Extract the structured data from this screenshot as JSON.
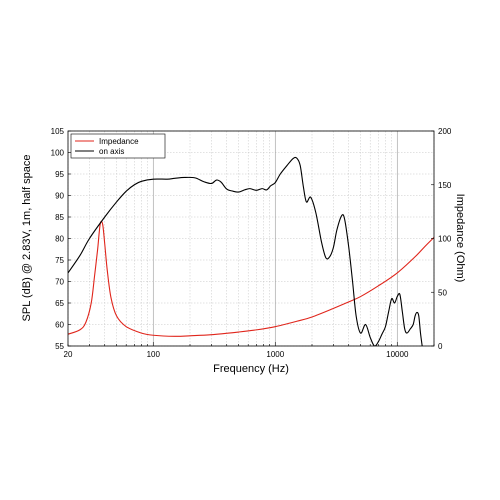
{
  "chart_data": {
    "type": "line",
    "xlabel": "Frequency (Hz)",
    "ylabel_left": "SPL (dB) @ 2.83V, 1m, half space",
    "ylabel_right": "Impedance (Ohm)",
    "x_scale": "log",
    "xlim": [
      20,
      20000
    ],
    "ylim_left": [
      55,
      105
    ],
    "ylim_right": [
      0,
      200
    ],
    "x_tick_labels": [
      "20",
      "100",
      "1000",
      "10000"
    ],
    "x_ticks": [
      20,
      100,
      1000,
      10000
    ],
    "y_left_ticks": [
      55,
      60,
      65,
      70,
      75,
      80,
      85,
      90,
      95,
      100,
      105
    ],
    "y_left_tick_labels": [
      "55",
      "60",
      "65",
      "70",
      "75",
      "80",
      "85",
      "90",
      "95",
      "100",
      "105"
    ],
    "y_right_ticks": [
      0,
      50,
      100,
      150,
      200
    ],
    "y_right_tick_labels": [
      "0",
      "50",
      "100",
      "150",
      "200"
    ],
    "grid": true,
    "legend_position": "top-left",
    "series": [
      {
        "name": "Impedance",
        "color": "#e0251b",
        "axis": "right",
        "points": [
          [
            20,
            11
          ],
          [
            25,
            15
          ],
          [
            28,
            22
          ],
          [
            31,
            40
          ],
          [
            33,
            65
          ],
          [
            35,
            90
          ],
          [
            36,
            105
          ],
          [
            37,
            115
          ],
          [
            38.5,
            113
          ],
          [
            40,
            95
          ],
          [
            42,
            70
          ],
          [
            45,
            45
          ],
          [
            50,
            28
          ],
          [
            60,
            18
          ],
          [
            80,
            12
          ],
          [
            100,
            10
          ],
          [
            150,
            9
          ],
          [
            200,
            9.5
          ],
          [
            300,
            10.5
          ],
          [
            500,
            13
          ],
          [
            700,
            15
          ],
          [
            1000,
            18
          ],
          [
            1500,
            23
          ],
          [
            2000,
            27
          ],
          [
            3000,
            35
          ],
          [
            4000,
            41
          ],
          [
            5000,
            46
          ],
          [
            7000,
            56
          ],
          [
            10000,
            68
          ],
          [
            14000,
            83
          ],
          [
            17000,
            93
          ],
          [
            20000,
            101
          ]
        ]
      },
      {
        "name": "on axis",
        "color": "#000000",
        "axis": "left",
        "points": [
          [
            20,
            72
          ],
          [
            25,
            76
          ],
          [
            30,
            80
          ],
          [
            40,
            85
          ],
          [
            50,
            88.5
          ],
          [
            60,
            91
          ],
          [
            70,
            92.5
          ],
          [
            80,
            93.3
          ],
          [
            100,
            93.8
          ],
          [
            130,
            93.8
          ],
          [
            150,
            94
          ],
          [
            180,
            94.2
          ],
          [
            220,
            94.1
          ],
          [
            260,
            93.2
          ],
          [
            300,
            92.8
          ],
          [
            330,
            93.6
          ],
          [
            360,
            93.1
          ],
          [
            400,
            91.5
          ],
          [
            450,
            91
          ],
          [
            500,
            90.8
          ],
          [
            560,
            91.3
          ],
          [
            620,
            91.6
          ],
          [
            700,
            91.2
          ],
          [
            780,
            91.6
          ],
          [
            850,
            91.3
          ],
          [
            920,
            92.3
          ],
          [
            1000,
            93
          ],
          [
            1100,
            95
          ],
          [
            1250,
            97
          ],
          [
            1400,
            98.6
          ],
          [
            1500,
            98.7
          ],
          [
            1600,
            97
          ],
          [
            1700,
            92
          ],
          [
            1800,
            88.5
          ],
          [
            1950,
            89.6
          ],
          [
            2150,
            86
          ],
          [
            2400,
            79
          ],
          [
            2600,
            75.5
          ],
          [
            2800,
            75.8
          ],
          [
            3000,
            78
          ],
          [
            3200,
            82
          ],
          [
            3500,
            85.3
          ],
          [
            3700,
            84.5
          ],
          [
            4000,
            78
          ],
          [
            4300,
            70
          ],
          [
            4600,
            62
          ],
          [
            5000,
            58
          ],
          [
            5500,
            60
          ],
          [
            6000,
            57
          ],
          [
            6500,
            55
          ],
          [
            7000,
            56
          ],
          [
            7500,
            57.8
          ],
          [
            8000,
            59.5
          ],
          [
            8500,
            63
          ],
          [
            9000,
            66
          ],
          [
            9500,
            65
          ],
          [
            10000,
            66.5
          ],
          [
            10500,
            67
          ],
          [
            11000,
            63
          ],
          [
            11500,
            59
          ],
          [
            12000,
            58
          ],
          [
            12800,
            59
          ],
          [
            13500,
            60
          ],
          [
            14000,
            62
          ],
          [
            14500,
            62.8
          ],
          [
            15000,
            62
          ],
          [
            15500,
            58
          ],
          [
            16000,
            55
          ]
        ]
      }
    ]
  }
}
